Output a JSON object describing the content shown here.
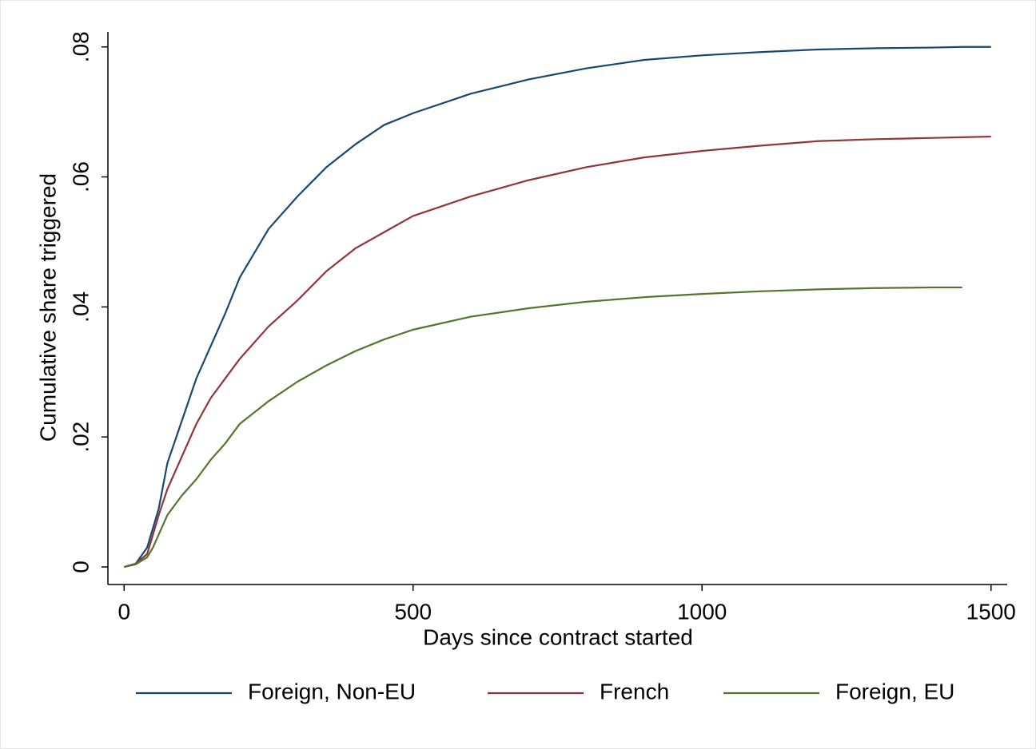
{
  "chart_data": {
    "type": "line",
    "x_label": "Days since contract started",
    "y_label": "Cumulative share triggered",
    "x": [
      0,
      20,
      40,
      50,
      60,
      75,
      100,
      125,
      150,
      175,
      200,
      250,
      300,
      350,
      400,
      450,
      500,
      600,
      700,
      800,
      900,
      1000,
      1100,
      1200,
      1300,
      1400,
      1450,
      1500
    ],
    "series": [
      {
        "name": "Foreign, Non-EU",
        "color": "#1a476f",
        "values": [
          0,
          0.0005,
          0.003,
          0.006,
          0.009,
          0.016,
          0.0225,
          0.029,
          0.034,
          0.039,
          0.0445,
          0.052,
          0.057,
          0.0615,
          0.065,
          0.068,
          0.0698,
          0.0728,
          0.075,
          0.0767,
          0.078,
          0.0787,
          0.0792,
          0.0796,
          0.0798,
          0.0799,
          0.08,
          0.08
        ]
      },
      {
        "name": "French",
        "color": "#90353b",
        "values": [
          0,
          0.0005,
          0.002,
          0.005,
          0.008,
          0.012,
          0.017,
          0.022,
          0.026,
          0.029,
          0.032,
          0.037,
          0.041,
          0.0455,
          0.049,
          0.0515,
          0.054,
          0.057,
          0.0595,
          0.0615,
          0.063,
          0.064,
          0.0648,
          0.0655,
          0.0658,
          0.066,
          0.0661,
          0.0662
        ]
      },
      {
        "name": "Foreign, EU",
        "color": "#55752f",
        "values": [
          0,
          0.0004,
          0.0015,
          0.003,
          0.005,
          0.008,
          0.011,
          0.0135,
          0.0165,
          0.019,
          0.022,
          0.0255,
          0.0285,
          0.031,
          0.0332,
          0.035,
          0.0365,
          0.0385,
          0.0398,
          0.0408,
          0.0415,
          0.042,
          0.0424,
          0.0427,
          0.0429,
          0.043,
          0.043,
          null
        ]
      }
    ],
    "xlim": [
      -28,
      1528
    ],
    "xticks": [
      0,
      500,
      1000,
      1500
    ],
    "ylim": [
      -0.0027,
      0.0823
    ],
    "yticks": [
      0,
      {
        "value": 0.02,
        "label": ".02"
      },
      {
        "value": 0.04,
        "label": ".04"
      },
      {
        "value": 0.06,
        "label": ".06"
      },
      {
        "value": 0.08,
        "label": ".08"
      }
    ],
    "grid": false,
    "legend": "bottom"
  }
}
